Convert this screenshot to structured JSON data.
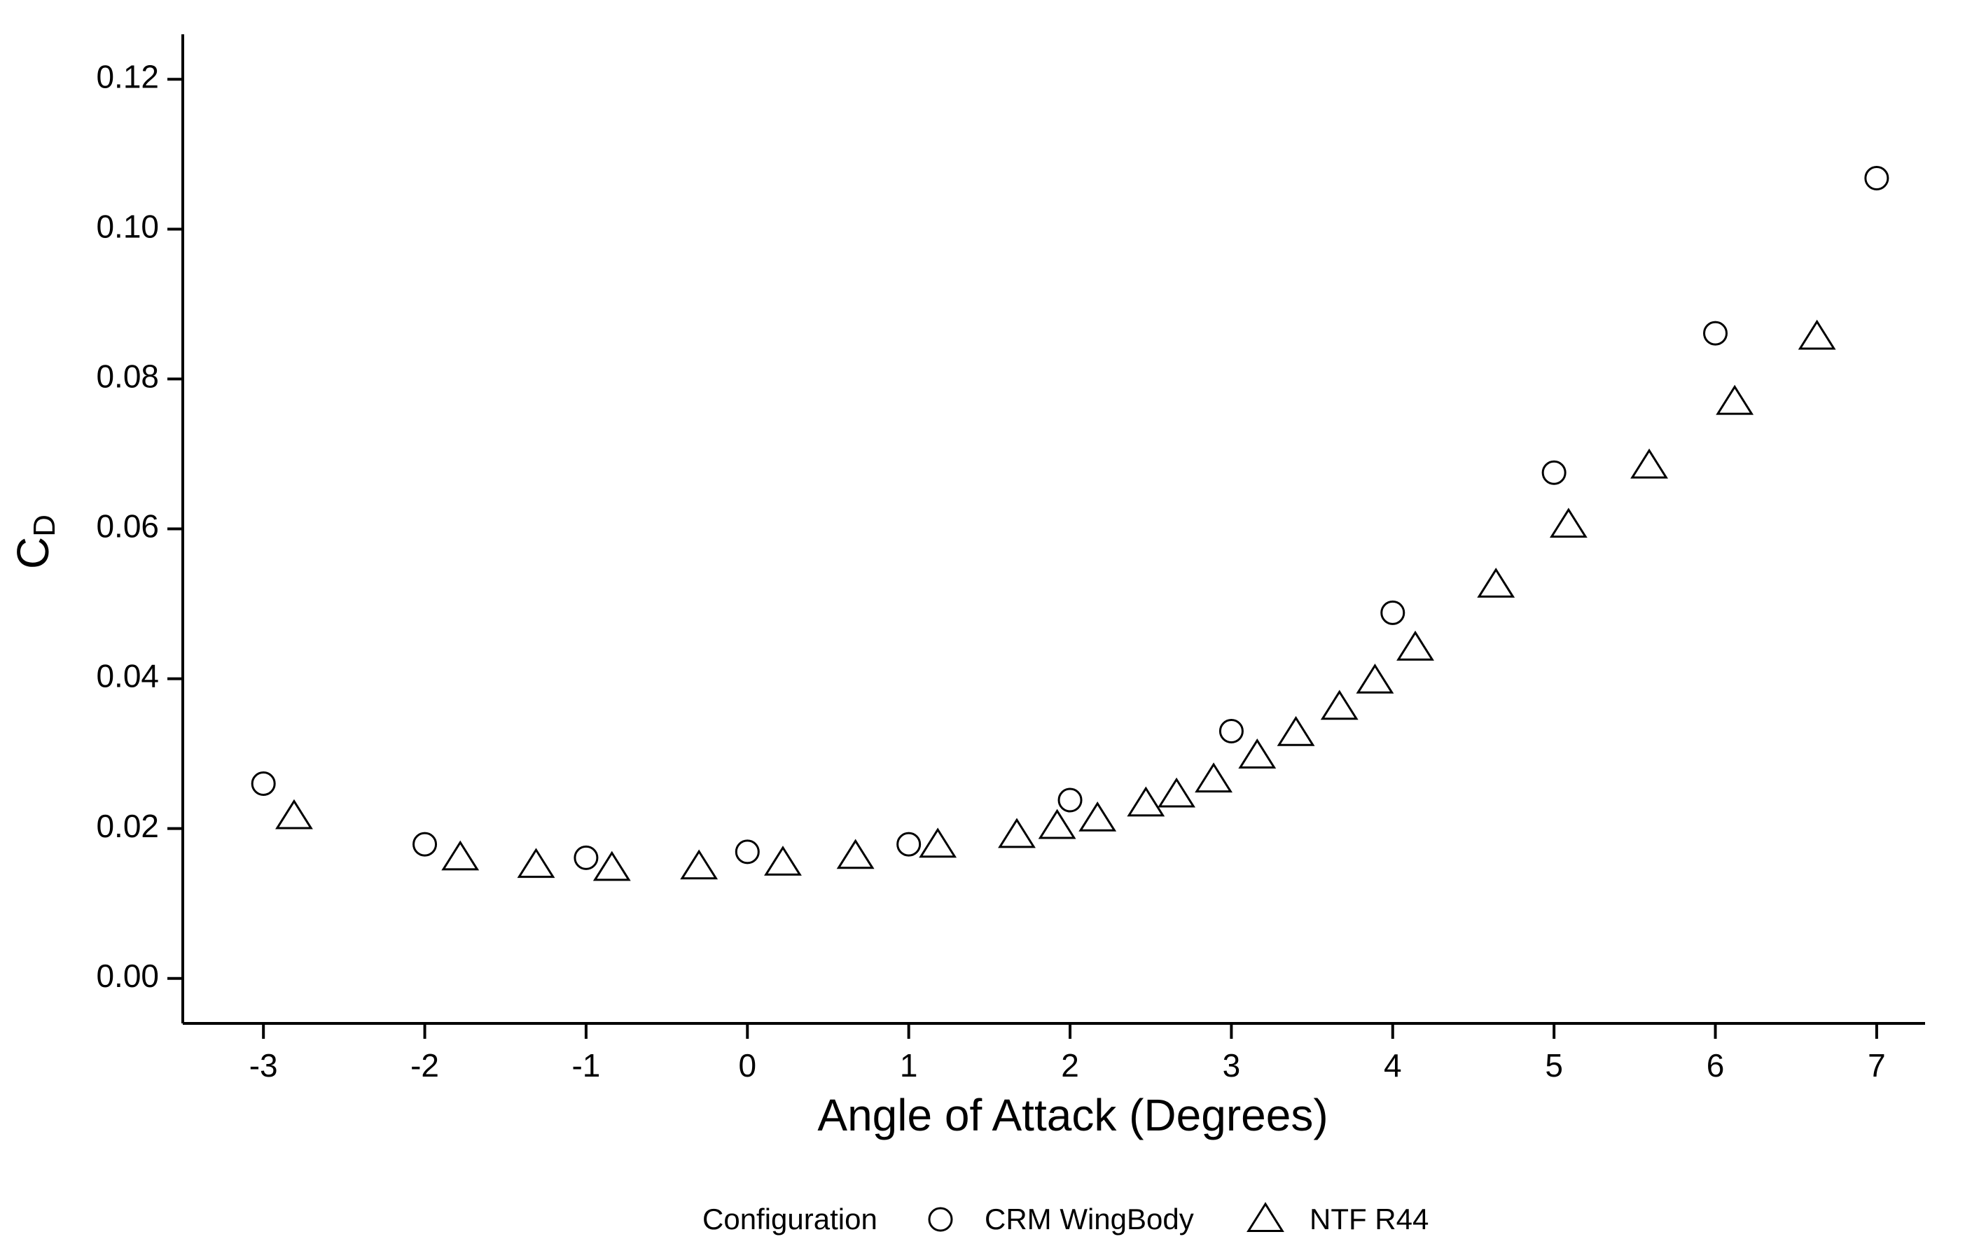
{
  "chart_data": {
    "type": "scatter",
    "x_label": "Angle of Attack (Degrees)",
    "y_label": "C",
    "y_label_sub": "D",
    "legend_title": "Configuration",
    "legend_position": "bottom",
    "xlim": [
      -3.5,
      7.3
    ],
    "ylim": [
      -0.006,
      0.126
    ],
    "xticks": [
      -3,
      -2,
      -1,
      0,
      1,
      2,
      3,
      4,
      5,
      6,
      7
    ],
    "yticks": [
      {
        "value": 0,
        "label": "0.00"
      },
      {
        "value": 0.02,
        "label": "0.02"
      },
      {
        "value": 0.04,
        "label": "0.04"
      },
      {
        "value": 0.06,
        "label": "0.06"
      },
      {
        "value": 0.08,
        "label": "0.08"
      },
      {
        "value": 0.1,
        "label": "0.10"
      },
      {
        "value": 0.12,
        "label": "0.12"
      }
    ],
    "series": [
      {
        "name": "CRM WingBody",
        "marker": "circle",
        "color": "#000000",
        "x": [
          -3,
          -2,
          -1,
          0,
          1,
          2,
          3,
          4,
          5,
          6,
          7
        ],
        "values": [
          0.026,
          0.0179,
          0.0161,
          0.0169,
          0.0179,
          0.0238,
          0.033,
          0.0488,
          0.0675,
          0.0861,
          0.1068
        ]
      },
      {
        "name": "NTF R44",
        "marker": "triangle",
        "color": "#000000",
        "x": [
          -2.81,
          -1.78,
          -1.31,
          -0.84,
          -0.3,
          0.22,
          0.67,
          1.18,
          1.67,
          1.92,
          2.17,
          2.47,
          2.66,
          2.89,
          3.16,
          3.4,
          3.67,
          3.89,
          4.14,
          4.64,
          5.09,
          5.59,
          6.12,
          6.63
        ],
        "values": [
          0.0216,
          0.0161,
          0.0151,
          0.0147,
          0.0149,
          0.0154,
          0.0163,
          0.0178,
          0.0191,
          0.0203,
          0.0213,
          0.0233,
          0.0245,
          0.0265,
          0.0297,
          0.0327,
          0.0362,
          0.0397,
          0.0441,
          0.0525,
          0.0605,
          0.0684,
          0.0769,
          0.0856
        ]
      }
    ]
  }
}
